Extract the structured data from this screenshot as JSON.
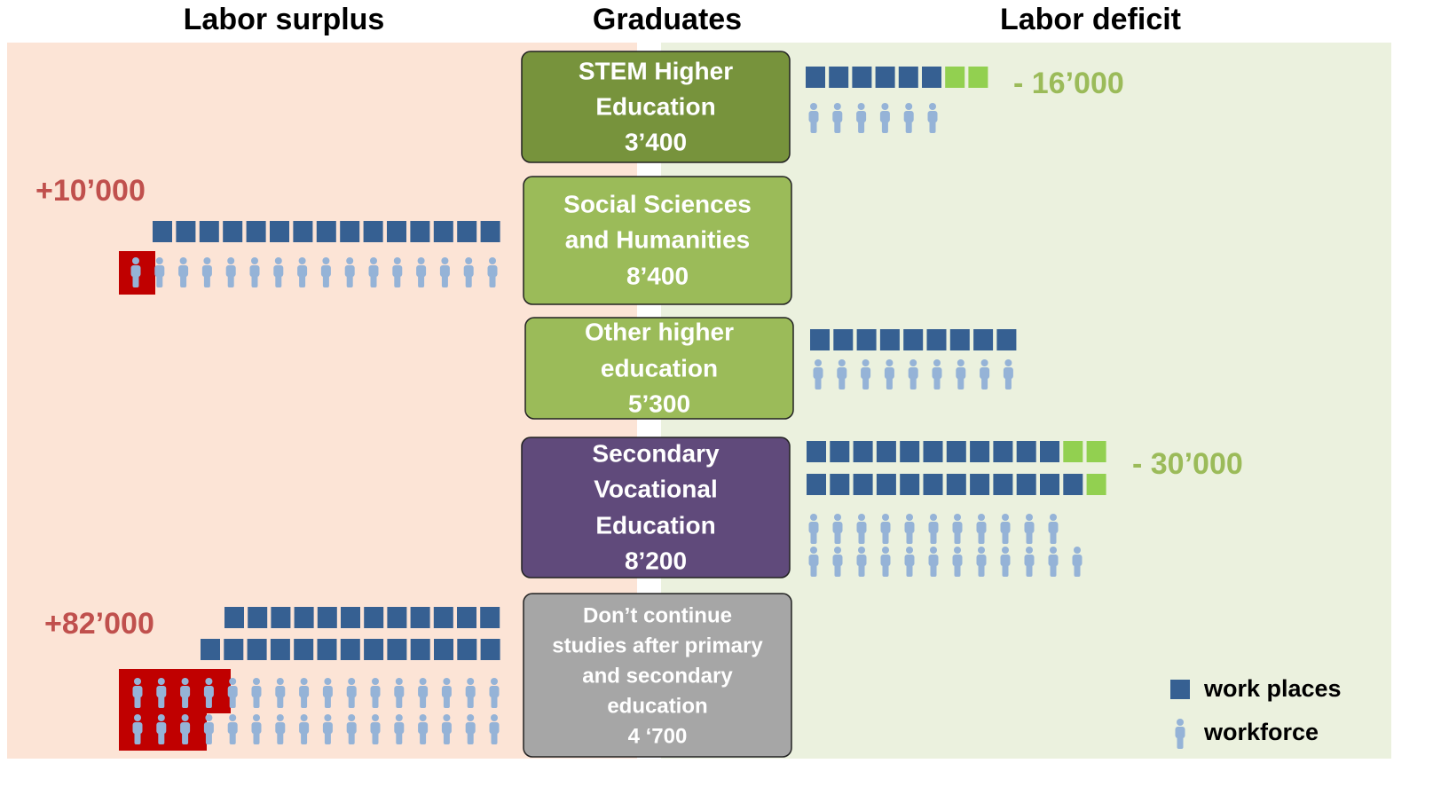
{
  "headers": [
    "Labor surplus",
    "Graduates",
    "Labor deficit"
  ],
  "boxes": [
    {
      "lines": [
        "STEM Higher",
        "Education",
        "3’400"
      ]
    },
    {
      "lines": [
        "Social Sciences",
        "and Humanities",
        "8’400"
      ]
    },
    {
      "lines": [
        "Other higher",
        "education",
        "5’300"
      ]
    },
    {
      "lines": [
        "Secondary",
        "Vocational",
        "Education",
        "8’200"
      ]
    },
    {
      "lines": [
        "Don’t continue",
        "studies after primary",
        "and secondary",
        "education",
        "4 ‘700"
      ]
    }
  ],
  "surplus": [
    "+10’000",
    "+82’000"
  ],
  "deficit": [
    "- 16’000",
    "- 30’000"
  ],
  "legend": [
    "work places",
    "workforce"
  ]
}
